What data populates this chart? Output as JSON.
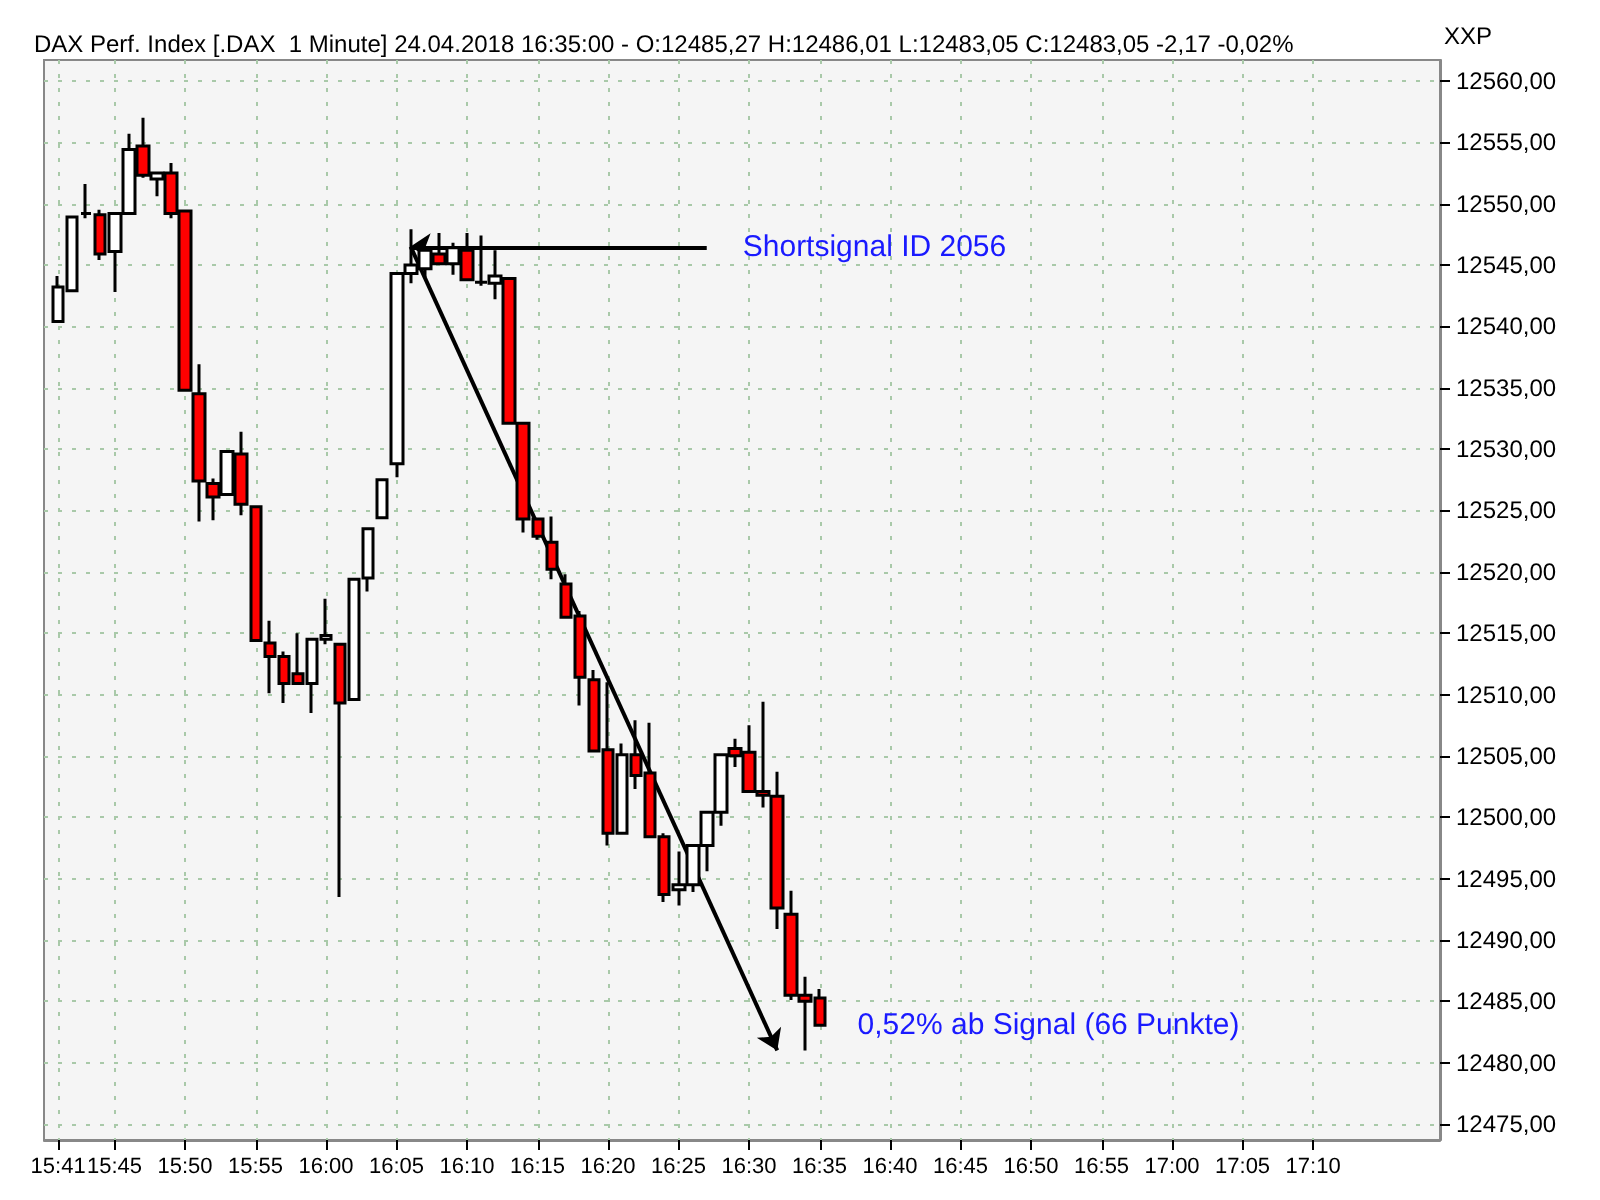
{
  "chart_data": {
    "type": "candlestick",
    "title": "DAX Perf. Index [.DAX  1 Minute] 24.04.2018 16:35:00 - O:12485,27 H:12486,01 L:12483,05 C:12483,05 -2,17 -0,02%",
    "ylabel": "XXP",
    "x": [
      "2018-04-24T15:41",
      "2018-04-24T15:42",
      "2018-04-24T15:43",
      "2018-04-24T15:44",
      "2018-04-24T15:45",
      "2018-04-24T15:46",
      "2018-04-24T15:47",
      "2018-04-24T15:48",
      "2018-04-24T15:49",
      "2018-04-24T15:50",
      "2018-04-24T15:51",
      "2018-04-24T15:52",
      "2018-04-24T15:53",
      "2018-04-24T15:54",
      "2018-04-24T15:55",
      "2018-04-24T15:56",
      "2018-04-24T15:57",
      "2018-04-24T15:58",
      "2018-04-24T15:59",
      "2018-04-24T16:00",
      "2018-04-24T16:01",
      "2018-04-24T16:02",
      "2018-04-24T16:03",
      "2018-04-24T16:04",
      "2018-04-24T16:05",
      "2018-04-24T16:06",
      "2018-04-24T16:07",
      "2018-04-24T16:08",
      "2018-04-24T16:09",
      "2018-04-24T16:10",
      "2018-04-24T16:11",
      "2018-04-24T16:12",
      "2018-04-24T16:13",
      "2018-04-24T16:14",
      "2018-04-24T16:15",
      "2018-04-24T16:16",
      "2018-04-24T16:17",
      "2018-04-24T16:18",
      "2018-04-24T16:19",
      "2018-04-24T16:20",
      "2018-04-24T16:21",
      "2018-04-24T16:22",
      "2018-04-24T16:23",
      "2018-04-24T16:24",
      "2018-04-24T16:25",
      "2018-04-24T16:26",
      "2018-04-24T16:27",
      "2018-04-24T16:28",
      "2018-04-24T16:29",
      "2018-04-24T16:30",
      "2018-04-24T16:31",
      "2018-04-24T16:32",
      "2018-04-24T16:33",
      "2018-04-24T16:34",
      "2018-04-24T16:35"
    ],
    "ohlc": [
      [
        12540.4,
        12544.1,
        12540.4,
        12543.2
      ],
      [
        12542.9,
        12548.9,
        12542.8,
        12548.9
      ],
      [
        12549.2,
        12551.6,
        12548.8,
        12549.2
      ],
      [
        12549.1,
        12549.5,
        12545.4,
        12545.9
      ],
      [
        12546.1,
        12549.2,
        12542.8,
        12549.2
      ],
      [
        12549.2,
        12555.7,
        12549.2,
        12554.4
      ],
      [
        12554.7,
        12557.0,
        12552.1,
        12552.3
      ],
      [
        12552.0,
        12552.5,
        12550.6,
        12552.5
      ],
      [
        12552.5,
        12553.3,
        12548.8,
        12549.2
      ],
      [
        12549.4,
        12549.4,
        12534.8,
        12534.8
      ],
      [
        12534.5,
        12536.9,
        12524.1,
        12527.4
      ],
      [
        12527.2,
        12527.6,
        12524.2,
        12526.1
      ],
      [
        12526.3,
        12529.9,
        12526.3,
        12529.8
      ],
      [
        12529.6,
        12531.4,
        12524.6,
        12525.5
      ],
      [
        12525.3,
        12525.3,
        12514.4,
        12514.4
      ],
      [
        12514.2,
        12516.0,
        12510.1,
        12513.1
      ],
      [
        12513.1,
        12513.5,
        12509.3,
        12510.9
      ],
      [
        12511.7,
        12515.0,
        12510.9,
        12510.9
      ],
      [
        12510.9,
        12514.5,
        12508.5,
        12514.5
      ],
      [
        12514.5,
        12517.8,
        12514.1,
        12514.8
      ],
      [
        12514.1,
        12514.1,
        12493.5,
        12509.3
      ],
      [
        12509.6,
        12519.4,
        12509.6,
        12519.4
      ],
      [
        12519.5,
        12523.5,
        12518.4,
        12523.5
      ],
      [
        12524.4,
        12527.5,
        12524.4,
        12527.5
      ],
      [
        12528.8,
        12544.3,
        12527.7,
        12544.3
      ],
      [
        12544.3,
        12547.9,
        12543.5,
        12545.0
      ],
      [
        12544.7,
        12546.2,
        12544.0,
        12546.2
      ],
      [
        12545.9,
        12547.6,
        12545.1,
        12545.1
      ],
      [
        12545.1,
        12546.8,
        12544.2,
        12546.4
      ],
      [
        12546.2,
        12547.6,
        12543.8,
        12543.8
      ],
      [
        12543.6,
        12547.4,
        12543.3,
        12543.6
      ],
      [
        12543.5,
        12546.2,
        12542.2,
        12544.1
      ],
      [
        12543.9,
        12543.9,
        12532.1,
        12532.1
      ],
      [
        12532.1,
        12532.1,
        12523.2,
        12524.3
      ],
      [
        12524.3,
        12524.3,
        12522.6,
        12522.9
      ],
      [
        12522.4,
        12524.5,
        12519.4,
        12520.2
      ],
      [
        12519.0,
        12519.8,
        12516.3,
        12516.3
      ],
      [
        12516.4,
        12516.8,
        12509.1,
        12511.4
      ],
      [
        12511.2,
        12512.0,
        12505.4,
        12505.4
      ],
      [
        12505.5,
        12511.0,
        12497.7,
        12498.7
      ],
      [
        12498.7,
        12506.0,
        12498.7,
        12505.1
      ],
      [
        12505.1,
        12507.9,
        12502.3,
        12503.4
      ],
      [
        12503.6,
        12507.7,
        12498.4,
        12498.4
      ],
      [
        12498.4,
        12498.7,
        12493.1,
        12493.7
      ],
      [
        12494.1,
        12497.2,
        12492.8,
        12494.5
      ],
      [
        12494.5,
        12497.7,
        12493.9,
        12497.7
      ],
      [
        12497.7,
        12500.4,
        12495.6,
        12500.4
      ],
      [
        12500.4,
        12505.1,
        12499.3,
        12505.1
      ],
      [
        12505.6,
        12506.4,
        12504.1,
        12505.0
      ],
      [
        12505.3,
        12507.5,
        12502.1,
        12502.1
      ],
      [
        12502.1,
        12509.4,
        12500.8,
        12501.8
      ],
      [
        12501.7,
        12503.7,
        12490.9,
        12492.6
      ],
      [
        12492.1,
        12494.0,
        12485.1,
        12485.5
      ],
      [
        12485.5,
        12487.0,
        12481.0,
        12485.0
      ],
      [
        12485.27,
        12486.01,
        12483.05,
        12483.05
      ]
    ],
    "xlim": [
      "2018-04-24T15:40",
      "2018-04-24T17:19"
    ],
    "xticks": [
      {
        "value": "2018-04-24T15:41",
        "label": "15:41"
      },
      {
        "value": "2018-04-24T15:45",
        "label": "15:45"
      },
      {
        "value": "2018-04-24T15:50",
        "label": "15:50"
      },
      {
        "value": "2018-04-24T15:55",
        "label": "15:55"
      },
      {
        "value": "2018-04-24T16:00",
        "label": "16:00"
      },
      {
        "value": "2018-04-24T16:05",
        "label": "16:05"
      },
      {
        "value": "2018-04-24T16:10",
        "label": "16:10"
      },
      {
        "value": "2018-04-24T16:15",
        "label": "16:15"
      },
      {
        "value": "2018-04-24T16:20",
        "label": "16:20"
      },
      {
        "value": "2018-04-24T16:25",
        "label": "16:25"
      },
      {
        "value": "2018-04-24T16:30",
        "label": "16:30"
      },
      {
        "value": "2018-04-24T16:35",
        "label": "16:35"
      },
      {
        "value": "2018-04-24T16:40",
        "label": "16:40"
      },
      {
        "value": "2018-04-24T16:45",
        "label": "16:45"
      },
      {
        "value": "2018-04-24T16:50",
        "label": "16:50"
      },
      {
        "value": "2018-04-24T16:55",
        "label": "16:55"
      },
      {
        "value": "2018-04-24T17:00",
        "label": "17:00"
      },
      {
        "value": "2018-04-24T17:05",
        "label": "17:05"
      },
      {
        "value": "2018-04-24T17:10",
        "label": "17:10"
      }
    ],
    "ylim": [
      12473.7,
      12561.7
    ],
    "yticks": [
      {
        "value": 12475,
        "label": "12475,00"
      },
      {
        "value": 12480,
        "label": "12480,00"
      },
      {
        "value": 12485,
        "label": "12485,00"
      },
      {
        "value": 12490,
        "label": "12490,00"
      },
      {
        "value": 12495,
        "label": "12495,00"
      },
      {
        "value": 12500,
        "label": "12500,00"
      },
      {
        "value": 12505,
        "label": "12505,00"
      },
      {
        "value": 12510,
        "label": "12510,00"
      },
      {
        "value": 12515,
        "label": "12515,00"
      },
      {
        "value": 12520,
        "label": "12520,00"
      },
      {
        "value": 12525,
        "label": "12525,00"
      },
      {
        "value": 12530,
        "label": "12530,00"
      },
      {
        "value": 12535,
        "label": "12535,00"
      },
      {
        "value": 12540,
        "label": "12540,00"
      },
      {
        "value": 12545,
        "label": "12545,00"
      },
      {
        "value": 12550,
        "label": "12550,00"
      },
      {
        "value": 12555,
        "label": "12555,00"
      },
      {
        "value": 12560,
        "label": "12560,00"
      }
    ],
    "annotations": [
      {
        "text": "Shortsignal ID 2056",
        "x": "2018-04-24T16:06",
        "y": 12546.5
      },
      "0,52% ab Signal (66 Punkte)"
    ],
    "grid": true
  }
}
